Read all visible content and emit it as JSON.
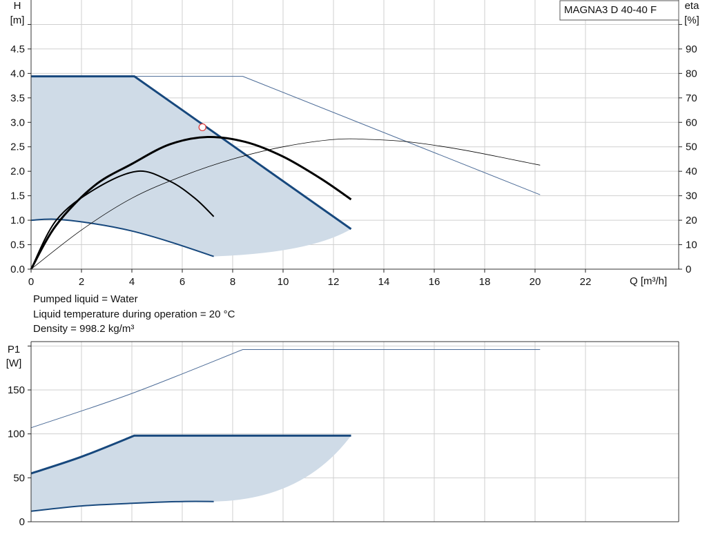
{
  "chart_data": [
    {
      "type": "line",
      "title": "",
      "model_label": "MAGNA3 D 40-40 F",
      "xlabel": "Q [m³/h]",
      "ylabel_top": "H",
      "ylabel_unit": "[m]",
      "y2label_top": "eta",
      "y2label_unit": "[%]",
      "xlim": [
        0,
        25.7
      ],
      "ylim": [
        0,
        5.5
      ],
      "y2lim": [
        0,
        110
      ],
      "xticks": [
        0,
        2,
        4,
        6,
        8,
        10,
        12,
        14,
        16,
        18,
        20,
        22
      ],
      "yticks": [
        0.0,
        0.5,
        1.0,
        1.5,
        2.0,
        2.5,
        3.0,
        3.5,
        4.0,
        4.5
      ],
      "ytick_labels": [
        "0.0",
        "0.5",
        "1.0",
        "1.5",
        "2.0",
        "2.5",
        "3.0",
        "3.5",
        "4.0",
        "4.5"
      ],
      "y2ticks": [
        0,
        10,
        20,
        30,
        40,
        50,
        60,
        70,
        80,
        90
      ],
      "grid": true,
      "operating_point": {
        "x": 6.8,
        "y": 2.9
      },
      "series": [
        {
          "key": "h_max_single",
          "axis": "left",
          "style": "thin-blue",
          "x": [
            0,
            8.4,
            20.2
          ],
          "y": [
            3.94,
            3.94,
            1.52
          ]
        },
        {
          "key": "h_max",
          "axis": "left",
          "style": "thick-blue",
          "x": [
            0,
            4.1,
            12.7
          ],
          "y": [
            3.94,
            3.94,
            0.82
          ]
        },
        {
          "key": "h_min",
          "axis": "left",
          "style": "blue",
          "x": [
            0,
            1.0,
            2.5,
            4.0,
            5.5,
            7.25
          ],
          "y": [
            1.0,
            1.02,
            0.93,
            0.78,
            0.56,
            0.26
          ]
        },
        {
          "key": "eta_range_max",
          "axis": "right",
          "style": "thick-black",
          "x": [
            0,
            1.0,
            2.5,
            4.0,
            5.5,
            7.0,
            8.5,
            10.0,
            11.5,
            12.7
          ],
          "y": [
            0,
            18,
            34,
            43,
            51,
            54,
            52,
            46,
            37,
            28.5
          ]
        },
        {
          "key": "eta_range_mid",
          "axis": "right",
          "style": "black",
          "x": [
            0,
            1.0,
            2.5,
            4.2,
            5.5,
            6.5,
            7.25
          ],
          "y": [
            0,
            20,
            32.5,
            40,
            36,
            29,
            21.5
          ]
        },
        {
          "key": "eta_single_max",
          "axis": "right",
          "style": "thin-black",
          "x": [
            0,
            2,
            4,
            6,
            8,
            10,
            12,
            13.5,
            15,
            17,
            19,
            20.2
          ],
          "y": [
            0,
            16,
            29,
            38,
            45,
            50,
            53,
            53,
            52,
            49,
            45,
            42.5
          ]
        }
      ]
    },
    {
      "type": "line",
      "title": "",
      "ylabel_top": "P1",
      "ylabel_unit": "[W]",
      "xlim": [
        0,
        25.7
      ],
      "ylim": [
        0,
        205
      ],
      "yticks": [
        0,
        50,
        100,
        150
      ],
      "grid": true,
      "series": [
        {
          "key": "p1_single_max",
          "style": "thin-blue",
          "x": [
            0,
            4,
            8.4,
            20.2
          ],
          "y": [
            107,
            146,
            196,
            196
          ]
        },
        {
          "key": "p1_max",
          "style": "thick-blue",
          "x": [
            0,
            2,
            4.1,
            12.7
          ],
          "y": [
            55,
            74,
            98,
            98
          ]
        },
        {
          "key": "p1_min",
          "style": "blue",
          "x": [
            0,
            2,
            4,
            6,
            7.25
          ],
          "y": [
            12,
            18,
            21,
            23,
            23
          ]
        }
      ]
    }
  ],
  "notes": [
    "Pumped liquid = Water",
    "Liquid temperature during operation = 20 °C",
    "Density = 998.2 kg/m³"
  ],
  "colors": {
    "curve_blue": "#17487d",
    "area_fill": "#cfdbe7",
    "thin_blue": "#4a6a96",
    "black": "#000000",
    "grid": "#cfcfcf",
    "marker": "#e04040"
  }
}
